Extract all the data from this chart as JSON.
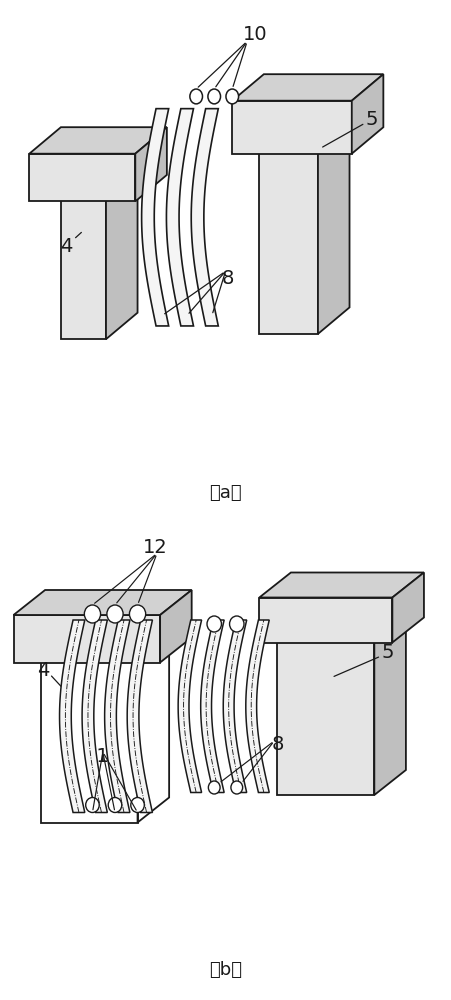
{
  "bg_color": "#ffffff",
  "line_color": "#1a1a1a",
  "label_color": "#1a1a1a",
  "label_fontsize": 14,
  "caption_fontsize": 13
}
